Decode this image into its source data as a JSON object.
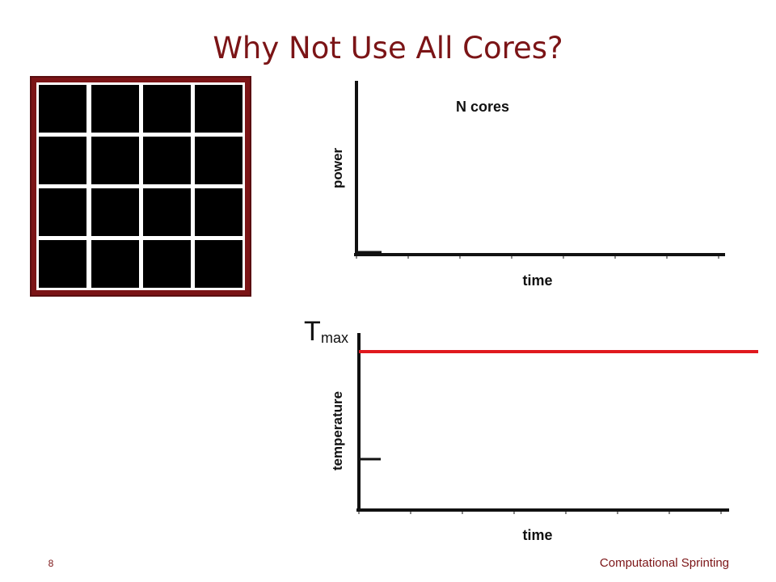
{
  "slide": {
    "title": "Why Not Use All Cores?",
    "power_plot": {
      "label": "N cores",
      "y_axis": "power",
      "x_axis": "time"
    },
    "temperature_plot": {
      "limit_symbol": "T",
      "limit_subscript": "max",
      "y_axis": "temperature",
      "x_axis": "time"
    },
    "footer": {
      "page": "8",
      "name": "Computational Sprinting"
    }
  }
}
